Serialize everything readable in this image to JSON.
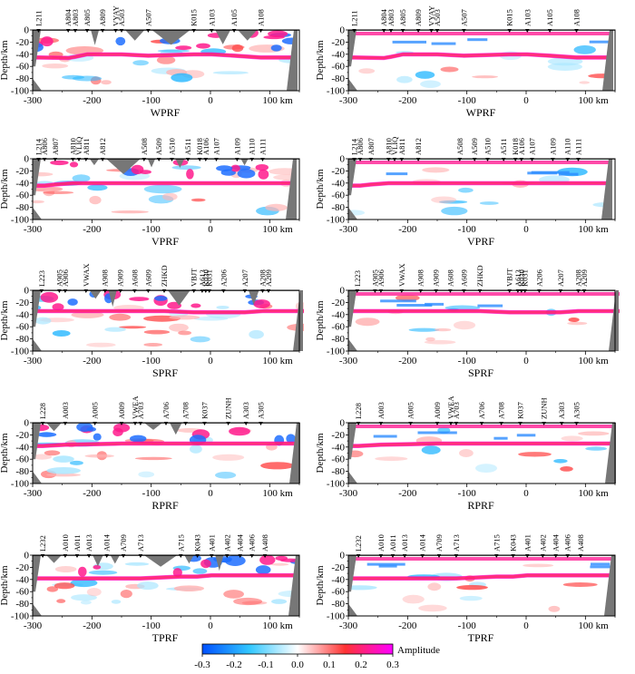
{
  "chart_data": {
    "type": "heatmap",
    "title": "",
    "xlabel": "km",
    "ylabel": "Depth/km",
    "xlim": [
      -300,
      150
    ],
    "ylim": [
      0,
      -100
    ],
    "x_ticks": [
      "-300",
      "-200",
      "-100",
      "0",
      "100 km"
    ],
    "y_ticks": [
      "0",
      "-20",
      "-40",
      "-60",
      "-80",
      "-100"
    ],
    "colorbar": {
      "label": "Amplitude",
      "range": [
        -0.3,
        0.3
      ],
      "ticks": [
        "-0.3",
        "-0.2",
        "-0.1",
        "0.0",
        "0.1",
        "0.2",
        "0.3"
      ],
      "colors": [
        "#0050ff",
        "#33c8ff",
        "#ffffff",
        "#ff3333",
        "#ff00ff"
      ]
    },
    "profiles": [
      {
        "name": "WPRF",
        "stations": [
          "L211",
          "A804",
          "A803",
          "A805",
          "A809",
          "VYAY",
          "A503",
          "A507",
          "K015",
          "A103",
          "A105",
          "A108"
        ],
        "station_km": [
          -290,
          -240,
          -228,
          -208,
          -182,
          -160,
          -150,
          -105,
          -28,
          2,
          40,
          85
        ],
        "moho_depth_km": [
          -45,
          -46,
          -44,
          -40,
          -40,
          -40,
          -40,
          -42,
          -40,
          -40,
          -42,
          -45
        ]
      },
      {
        "name": "VPRF",
        "stations": [
          "L214",
          "A806",
          "A807",
          "A810",
          "VLIQ",
          "A811",
          "A812",
          "A508",
          "A509",
          "A510",
          "A511",
          "K018",
          "A106",
          "A107",
          "A109",
          "A110",
          "A111"
        ],
        "station_km": [
          -290,
          -280,
          -262,
          -232,
          -222,
          -210,
          -182,
          -112,
          -87,
          -65,
          -38,
          -18,
          -8,
          10,
          45,
          70,
          88
        ],
        "moho_depth_km": [
          -44,
          -44,
          -42,
          -40,
          -40,
          -40,
          -40,
          -40,
          -40,
          -40,
          -40,
          -40,
          -40,
          -40,
          -40,
          -40,
          -40
        ]
      },
      {
        "name": "SPRF",
        "stations": [
          "L223",
          "A905",
          "A906",
          "VWAX",
          "A908",
          "A909",
          "A608",
          "A609",
          "ZHKD",
          "VBJT",
          "A613",
          "K030",
          "K031",
          "A206",
          "A207",
          "A208",
          "A209"
        ],
        "station_km": [
          -285,
          -255,
          -245,
          -210,
          -178,
          -152,
          -128,
          -105,
          -78,
          -28,
          -14,
          -8,
          -2,
          22,
          58,
          88,
          98
        ],
        "moho_depth_km": [
          -34,
          -34,
          -34,
          -34,
          -34,
          -34,
          -34,
          -34,
          -34,
          -36,
          -36,
          -36,
          -36,
          -36,
          -36,
          -34,
          -34
        ]
      },
      {
        "name": "RPRF",
        "stations": [
          "L228",
          "A003",
          "A005",
          "A009",
          "VWEA",
          "A703",
          "A706",
          "A708",
          "K037",
          "ZUNH",
          "A303",
          "A305"
        ],
        "station_km": [
          -283,
          -245,
          -195,
          -150,
          -127,
          -118,
          -75,
          -42,
          -10,
          30,
          60,
          85
        ],
        "moho_depth_km": [
          -38,
          -36,
          -35,
          -34,
          -34,
          -34,
          -34,
          -34,
          -34,
          -34,
          -34,
          -34
        ]
      },
      {
        "name": "TPRF",
        "stations": [
          "L232",
          "A010",
          "A011",
          "A013",
          "A014",
          "A709",
          "A713",
          "A715",
          "K043",
          "A401",
          "A402",
          "A404",
          "A406",
          "A408"
        ],
        "station_km": [
          -283,
          -245,
          -225,
          -205,
          -175,
          -147,
          -118,
          -50,
          -22,
          2,
          28,
          50,
          70,
          92
        ],
        "moho_depth_km": [
          -38,
          -38,
          -38,
          -38,
          -38,
          -38,
          -38,
          -35,
          -35,
          -33,
          -33,
          -33,
          -33,
          -33
        ]
      }
    ]
  }
}
